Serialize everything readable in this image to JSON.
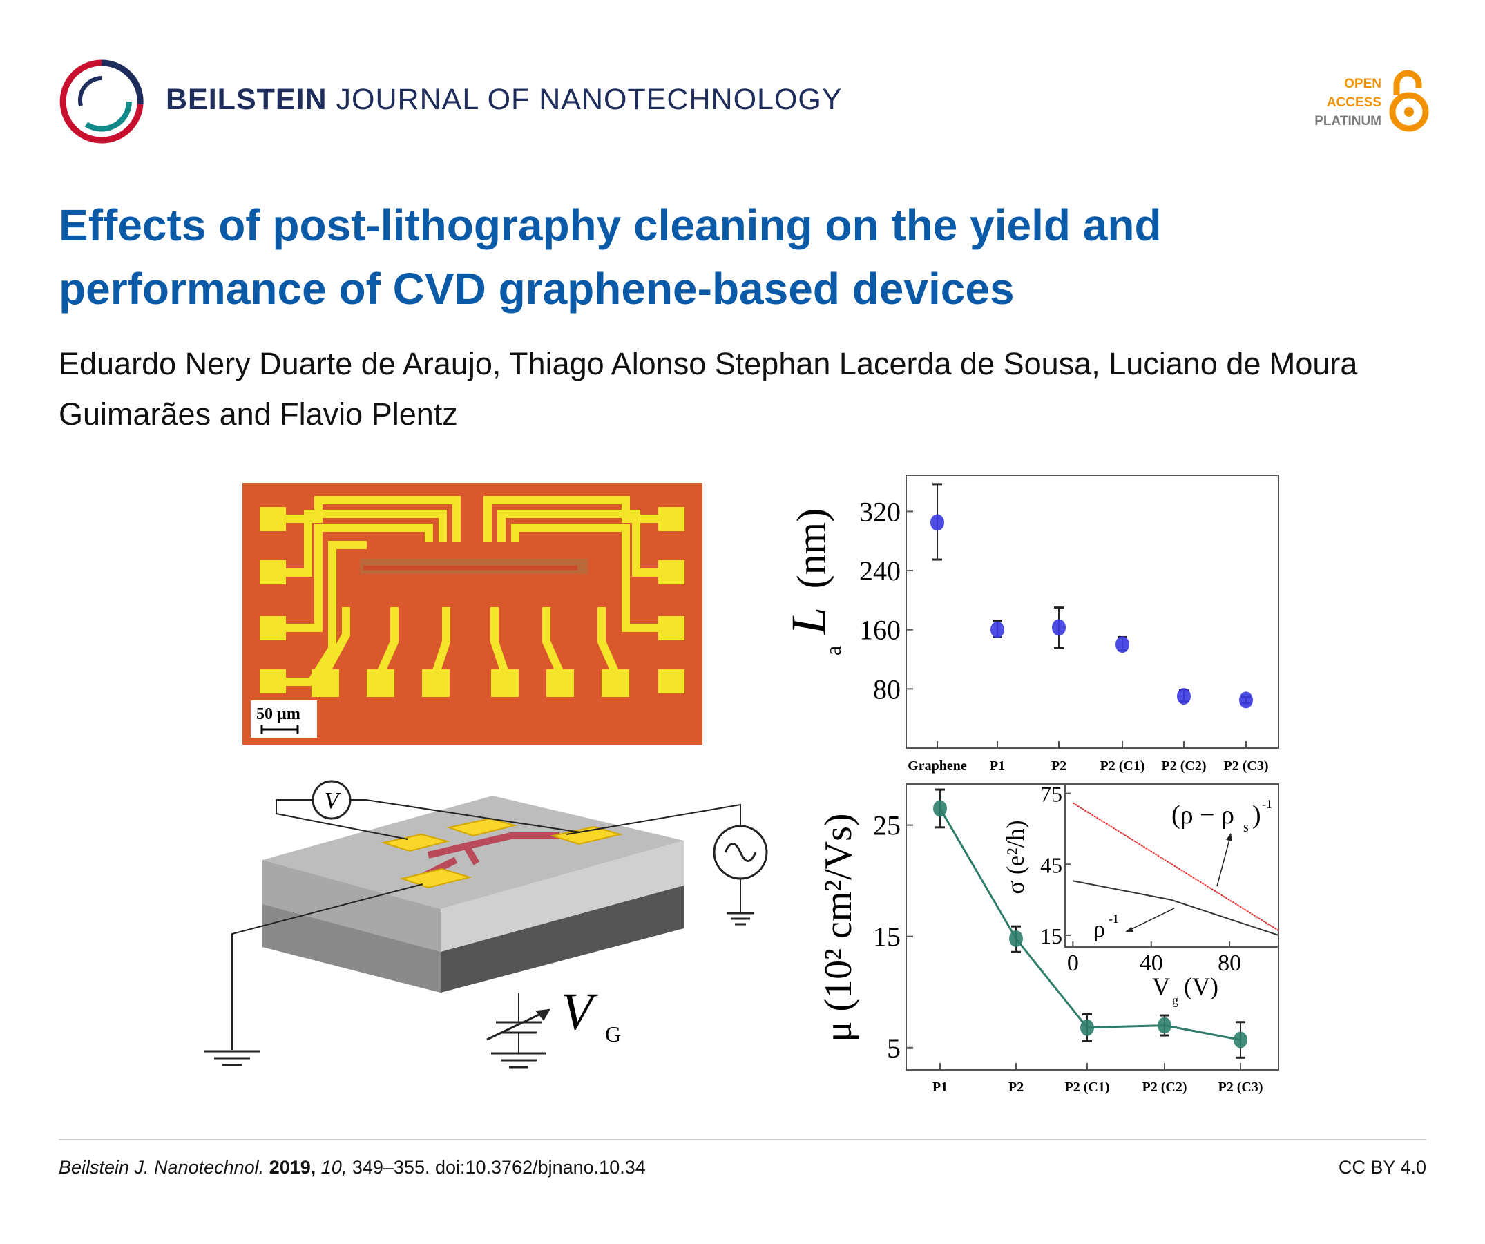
{
  "header": {
    "journal_bold": "BEILSTEIN",
    "journal_rest": "JOURNAL OF NANOTECHNOLOGY",
    "open_access": [
      "OPEN",
      "ACCESS",
      "PLATINUM"
    ],
    "logo_icon": "beilstein-ring-logo",
    "oa_icon": "open-lock-icon",
    "colors": {
      "brand": "#1f2d5c",
      "title": "#0b5aa7",
      "oa_orange": "#f39200",
      "oa_gray": "#7a7a7a"
    }
  },
  "article": {
    "title": "Effects of post-lithography cleaning on the yield and performance of CVD graphene-based devices",
    "authors": "Eduardo Nery Duarte de Araujo, Thiago Alonso Stephan Lacerda de Sousa, Luciano de Moura Guimarães and Flavio Plentz"
  },
  "figure": {
    "micrograph_scale": "50 µm",
    "voltmeter_label": "V",
    "gate_label": "V",
    "gate_sub": "G"
  },
  "chart_data": [
    {
      "type": "scatter",
      "title": "",
      "ylabel": "L",
      "ylabel_sub": "a",
      "ylabel_unit": "(nm)",
      "categories": [
        "Graphene",
        "P1",
        "P2",
        "P2 (C1)",
        "P2 (C2)",
        "P2 (C3)"
      ],
      "values": [
        305,
        160,
        163,
        140,
        70,
        65
      ],
      "err_low": [
        255,
        150,
        135,
        132,
        63,
        61
      ],
      "err_high": [
        357,
        172,
        190,
        150,
        78,
        69
      ],
      "yticks": [
        80,
        160,
        240,
        320
      ],
      "ylim": [
        0,
        369
      ],
      "color": "#3a3ae0"
    },
    {
      "type": "line",
      "ylabel": "μ (10² cm²/Vs)",
      "categories": [
        "P1",
        "P2",
        "P2 (C1)",
        "P2 (C2)",
        "P2 (C3)"
      ],
      "values": [
        26.5,
        14.8,
        6.8,
        7.0,
        5.7
      ],
      "err_low": [
        24.8,
        13.6,
        5.6,
        6.1,
        4.1
      ],
      "err_high": [
        28.2,
        15.9,
        8.0,
        7.9,
        7.3
      ],
      "yticks": [
        5,
        15,
        25
      ],
      "ylim": [
        3,
        28.7
      ],
      "color": "#2e7d6b",
      "inset": {
        "type": "line",
        "xlabel": "V",
        "xlabel_sub": "g",
        "xlabel_unit": "(V)",
        "ylabel": "σ (e²/h)",
        "xticks": [
          0,
          40,
          80
        ],
        "yticks": [
          15,
          45,
          75
        ],
        "xlim": [
          -4,
          105
        ],
        "ylim": [
          10,
          79
        ],
        "series": [
          {
            "name": "(ρ − ρs)⁻¹",
            "color": "#e83030",
            "x": [
              0,
              105
            ],
            "y": [
              71,
              17
            ]
          },
          {
            "name": "ρ⁻¹",
            "color": "#333333",
            "x": [
              0,
              50,
              105
            ],
            "y": [
              38,
              30,
              15
            ]
          }
        ],
        "annotations": {
          "red_label": "(ρ − ρ",
          "red_sub": "s",
          "red_sup": "-1",
          "black_label": "ρ",
          "black_sup": "-1"
        }
      }
    }
  ],
  "footer": {
    "journal": "Beilstein J. Nanotechnol.",
    "year": "2019,",
    "volume": "10,",
    "pages_doi": "349–355. doi:10.3762/bjnano.10.34",
    "license": "CC BY 4.0"
  }
}
